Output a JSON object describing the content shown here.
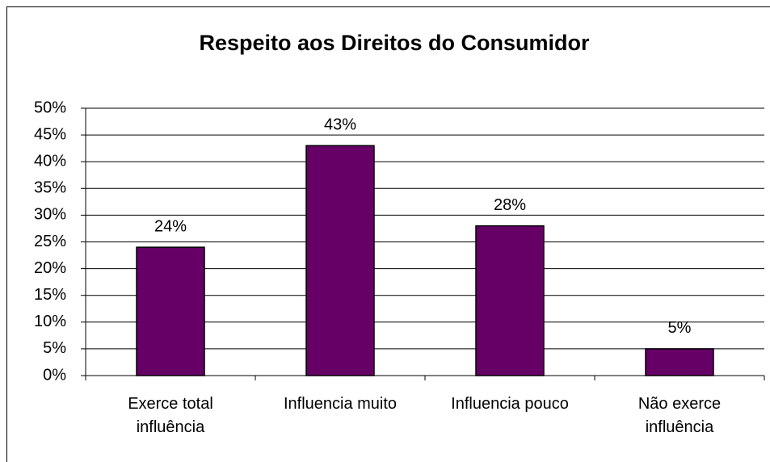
{
  "chart_data": {
    "type": "bar",
    "title": "Respeito aos Direitos do Consumidor",
    "categories": [
      "Exerce total influência",
      "Influencia muito",
      "Influencia pouco",
      "Não exerce influência"
    ],
    "values": [
      24,
      43,
      28,
      5
    ],
    "value_labels": [
      "24%",
      "43%",
      "28%",
      "5%"
    ],
    "color": "#660066",
    "ylim": [
      0,
      50
    ],
    "yticks": [
      {
        "value": 0,
        "label": "0%"
      },
      {
        "value": 5,
        "label": "5%"
      },
      {
        "value": 10,
        "label": "10%"
      },
      {
        "value": 15,
        "label": "15%"
      },
      {
        "value": 20,
        "label": "20%"
      },
      {
        "value": 25,
        "label": "25%"
      },
      {
        "value": 30,
        "label": "30%"
      },
      {
        "value": 35,
        "label": "35%"
      },
      {
        "value": 40,
        "label": "40%"
      },
      {
        "value": 45,
        "label": "45%"
      },
      {
        "value": 50,
        "label": "50%"
      }
    ],
    "grid": true
  }
}
